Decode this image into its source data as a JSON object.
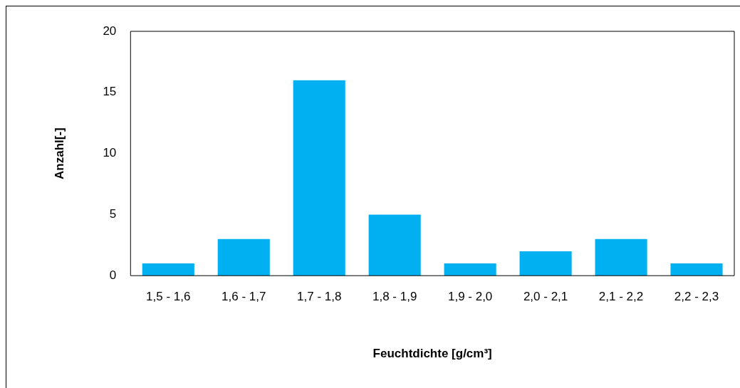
{
  "chart_data": {
    "type": "bar",
    "xlabel": "Feuchtdichte [g/cm³]",
    "ylabel": "Anzahl[-]",
    "categories": [
      "1,5 - 1,6",
      "1,6 - 1,7",
      "1,7 - 1,8",
      "1,8 - 1,9",
      "1,9 - 2,0",
      "2,0 - 2,1",
      "2,1 - 2,2",
      "2,2 - 2,3"
    ],
    "values": [
      1,
      3,
      16,
      5,
      1,
      2,
      3,
      1
    ],
    "color": "#00b0f0",
    "ylim": [
      0,
      20
    ],
    "yticks": [
      0,
      5,
      10,
      15,
      20
    ],
    "grid": false,
    "legend": false
  }
}
